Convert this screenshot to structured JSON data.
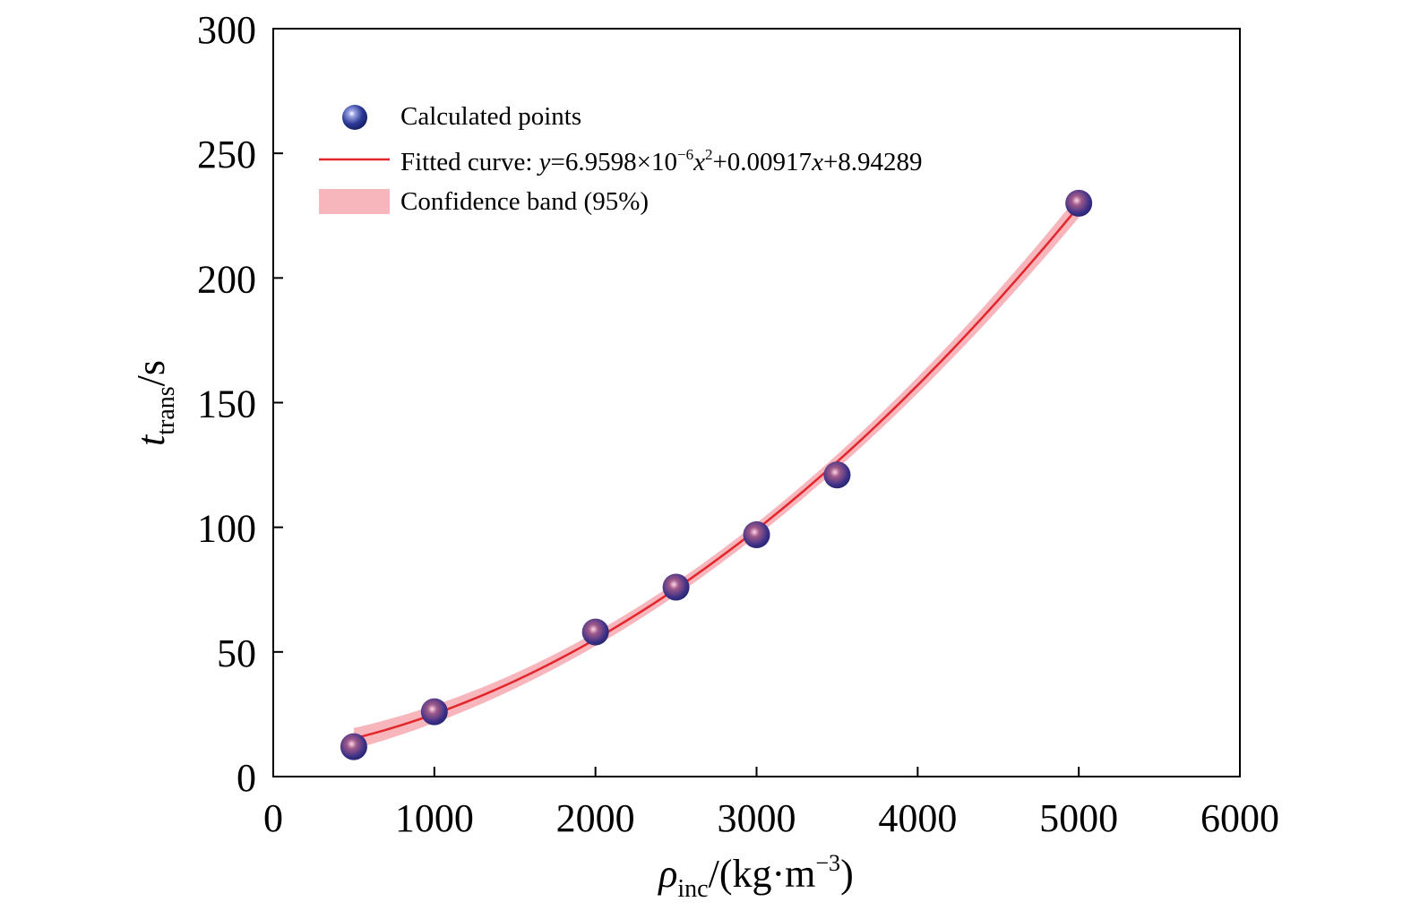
{
  "chart_data": {
    "type": "scatter",
    "title": "",
    "xlabel": {
      "base": "ρ",
      "sub": "inc",
      "unit_pre": "/(kg·m",
      "unit_sup": "−3",
      "unit_post": ")"
    },
    "ylabel": {
      "base": "t",
      "sub": "trans",
      "unit": "/s"
    },
    "xlim": [
      0,
      6000
    ],
    "ylim": [
      0,
      300
    ],
    "xticks": [
      0,
      1000,
      2000,
      3000,
      4000,
      5000,
      6000
    ],
    "yticks": [
      0,
      50,
      100,
      150,
      200,
      250,
      300
    ],
    "grid": false,
    "legend_position": "top-left",
    "series": [
      {
        "name": "Calculated points",
        "kind": "points",
        "color": "#2b3a97",
        "x": [
          500,
          1000,
          2000,
          2500,
          3000,
          3500,
          5000
        ],
        "y": [
          12,
          26,
          58,
          76,
          97,
          121,
          230
        ]
      },
      {
        "name": "Fitted curve",
        "kind": "line",
        "color": "#e3262c",
        "equation": {
          "a": 6.9598e-06,
          "b": 0.00917,
          "c": 8.94289
        },
        "x_range": [
          500,
          5000
        ]
      },
      {
        "name": "Confidence band (95%)",
        "kind": "band",
        "color": "#f7b5bc",
        "x_range": [
          500,
          5000
        ]
      }
    ],
    "legend": {
      "points_label": "Calculated points",
      "curve_label_prefix": "Fitted curve: ",
      "curve_equation": {
        "y": "y",
        "eq_a": "=6.9598×10",
        "exp_a": "−6",
        "x1": "x",
        "sq": "2",
        "eq_b": "+0.00917",
        "x2": "x",
        "eq_c": "+8.94289"
      },
      "band_label": "Confidence band (95%)"
    }
  }
}
